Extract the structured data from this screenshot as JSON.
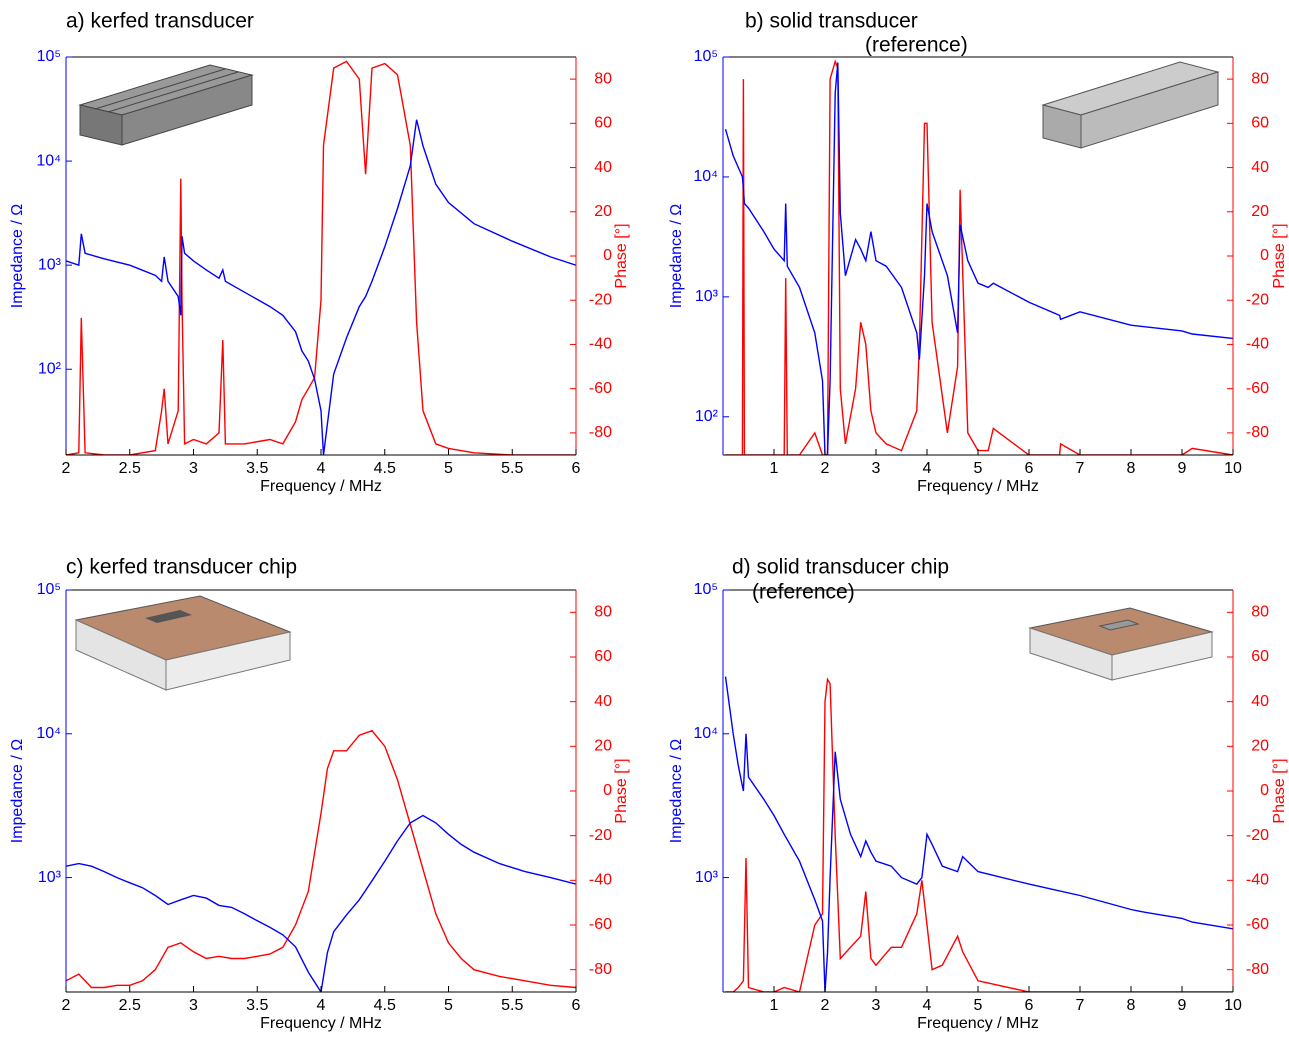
{
  "chart_data": [
    {
      "type": "line",
      "title": "a) kerfed transducer",
      "x_label": "Frequency / MHz",
      "y_label": "Impedance / Ω",
      "y2_label": "Phase [°]",
      "xlim": [
        2,
        6
      ],
      "xticks": [
        2,
        2.5,
        3,
        3.5,
        4,
        4.5,
        5,
        5.5,
        6
      ],
      "ylog": true,
      "ylim": [
        15,
        100000
      ],
      "yticks": [
        {
          "value": 100,
          "label": "10²"
        },
        {
          "value": 1000,
          "label": "10³"
        },
        {
          "value": 10000,
          "label": "10⁴"
        },
        {
          "value": 100000,
          "label": "10⁵"
        }
      ],
      "y2lim": [
        -90,
        90
      ],
      "y2ticks": [
        -80,
        -60,
        -40,
        -20,
        0,
        20,
        40,
        60,
        80
      ],
      "x": [
        2.0,
        2.1,
        2.12,
        2.15,
        2.3,
        2.5,
        2.7,
        2.75,
        2.77,
        2.8,
        2.88,
        2.9,
        2.91,
        2.93,
        3.0,
        3.1,
        3.2,
        3.23,
        3.25,
        3.4,
        3.6,
        3.7,
        3.8,
        3.85,
        3.9,
        3.95,
        4.0,
        4.02,
        4.1,
        4.2,
        4.3,
        4.35,
        4.4,
        4.5,
        4.6,
        4.7,
        4.75,
        4.8,
        4.9,
        5.0,
        5.2,
        5.5,
        5.8,
        6.0
      ],
      "series": [
        {
          "color": "#0000ff",
          "values": [
            1100,
            1000,
            2000,
            1300,
            1150,
            1000,
            800,
            700,
            1200,
            700,
            500,
            330,
            1900,
            1300,
            1100,
            900,
            750,
            900,
            700,
            550,
            400,
            330,
            230,
            150,
            120,
            80,
            40,
            15,
            90,
            200,
            400,
            500,
            700,
            1500,
            3500,
            9000,
            25000,
            14000,
            6000,
            4000,
            2500,
            1700,
            1200,
            1000
          ]
        },
        {
          "color": "#ff0000",
          "axis": "y2",
          "values": [
            -90,
            -89,
            -28,
            -89,
            -90,
            -90,
            -88,
            -70,
            -60,
            -85,
            -70,
            35,
            -20,
            -85,
            -83,
            -85,
            -80,
            -38,
            -85,
            -85,
            -83,
            -85,
            -75,
            -65,
            -60,
            -55,
            -20,
            50,
            85,
            88,
            80,
            37,
            85,
            87,
            82,
            50,
            -30,
            -70,
            -85,
            -87,
            -89,
            -90,
            -90,
            -90
          ]
        }
      ]
    },
    {
      "type": "line",
      "title": "b) solid transducer",
      "subtitle": "(reference)",
      "x_label": "Frequency / MHz",
      "y_label": "Impedance / Ω",
      "y2_label": "Phase [°]",
      "xlim": [
        0,
        10
      ],
      "xticks": [
        1,
        2,
        3,
        4,
        5,
        6,
        7,
        8,
        9,
        10
      ],
      "ylog": true,
      "ylim": [
        48,
        100000
      ],
      "yticks": [
        {
          "value": 100,
          "label": "10²"
        },
        {
          "value": 1000,
          "label": "10³"
        },
        {
          "value": 10000,
          "label": "10⁴"
        },
        {
          "value": 100000,
          "label": "10⁵"
        }
      ],
      "y2lim": [
        -90,
        90
      ],
      "y2ticks": [
        -80,
        -60,
        -40,
        -20,
        0,
        20,
        40,
        60,
        80
      ],
      "x": [
        0.05,
        0.2,
        0.38,
        0.4,
        0.42,
        0.5,
        0.8,
        1.0,
        1.2,
        1.23,
        1.26,
        1.5,
        1.8,
        1.95,
        2.0,
        2.05,
        2.1,
        2.2,
        2.25,
        2.3,
        2.4,
        2.6,
        2.7,
        2.8,
        2.9,
        3.0,
        3.2,
        3.5,
        3.8,
        3.85,
        3.95,
        4.0,
        4.1,
        4.4,
        4.6,
        4.65,
        4.8,
        5.0,
        5.2,
        5.3,
        6.0,
        6.6,
        6.62,
        7.0,
        8.0,
        9.0,
        9.2,
        10
      ],
      "series": [
        {
          "color": "#0000ff",
          "values": [
            25000,
            15000,
            10000,
            8000,
            6000,
            5500,
            3500,
            2500,
            2000,
            6000,
            1800,
            1200,
            500,
            200,
            48,
            48,
            200,
            50000,
            90000,
            5000,
            1500,
            3000,
            2500,
            2000,
            3500,
            2000,
            1800,
            1200,
            500,
            300,
            1500,
            6000,
            3500,
            1500,
            500,
            4000,
            2000,
            1300,
            1200,
            1300,
            900,
            700,
            650,
            750,
            580,
            520,
            490,
            450
          ]
        },
        {
          "color": "#ff0000",
          "axis": "y2",
          "values": [
            -90,
            -90,
            -90,
            80,
            -90,
            -90,
            -90,
            -90,
            -90,
            -10,
            -90,
            -90,
            -80,
            -90,
            -90,
            -90,
            80,
            88,
            85,
            -60,
            -85,
            -60,
            -30,
            -40,
            -70,
            -80,
            -85,
            -88,
            -70,
            -40,
            60,
            60,
            -30,
            -80,
            -50,
            30,
            -80,
            -88,
            -88,
            -78,
            -90,
            -90,
            -85,
            -90,
            -90,
            -90,
            -87,
            -90
          ]
        }
      ]
    },
    {
      "type": "line",
      "title": "c) kerfed transducer chip",
      "x_label": "Frequency / MHz",
      "y_label": "Impedance / Ω",
      "y2_label": "Phase [°]",
      "xlim": [
        2,
        6
      ],
      "xticks": [
        2,
        2.5,
        3,
        3.5,
        4,
        4.5,
        5,
        5.5,
        6
      ],
      "ylog": true,
      "ylim": [
        160,
        100000
      ],
      "yticks": [
        {
          "value": 1000,
          "label": "10³"
        },
        {
          "value": 10000,
          "label": "10⁴"
        },
        {
          "value": 100000,
          "label": "10⁵"
        }
      ],
      "y2lim": [
        -90,
        90
      ],
      "y2ticks": [
        -80,
        -60,
        -40,
        -20,
        0,
        20,
        40,
        60,
        80
      ],
      "x": [
        2.0,
        2.1,
        2.2,
        2.3,
        2.4,
        2.5,
        2.6,
        2.7,
        2.8,
        2.9,
        3.0,
        3.1,
        3.2,
        3.3,
        3.4,
        3.5,
        3.6,
        3.7,
        3.8,
        3.9,
        4.0,
        4.05,
        4.1,
        4.2,
        4.3,
        4.4,
        4.5,
        4.6,
        4.7,
        4.8,
        4.9,
        5.0,
        5.1,
        5.2,
        5.4,
        5.6,
        5.8,
        6.0
      ],
      "series": [
        {
          "color": "#0000ff",
          "values": [
            1200,
            1250,
            1200,
            1100,
            1000,
            920,
            850,
            750,
            650,
            700,
            750,
            720,
            640,
            620,
            560,
            500,
            450,
            400,
            330,
            220,
            160,
            300,
            420,
            550,
            700,
            950,
            1300,
            1800,
            2400,
            2700,
            2400,
            2000,
            1700,
            1500,
            1250,
            1100,
            1000,
            900
          ]
        },
        {
          "color": "#ff0000",
          "axis": "y2",
          "values": [
            -85,
            -82,
            -88,
            -88,
            -87,
            -87,
            -85,
            -80,
            -70,
            -68,
            -72,
            -75,
            -74,
            -75,
            -75,
            -74,
            -73,
            -70,
            -60,
            -45,
            -10,
            10,
            18,
            18,
            25,
            27,
            20,
            5,
            -15,
            -35,
            -55,
            -68,
            -75,
            -80,
            -83,
            -85,
            -87,
            -88
          ]
        }
      ]
    },
    {
      "type": "line",
      "title": "d) solid transducer chip",
      "subtitle": "(reference)",
      "x_label": "Frequency / MHz",
      "y_label": "Impedance / Ω",
      "y2_label": "Phase [°]",
      "xlim": [
        0,
        10
      ],
      "xticks": [
        1,
        2,
        3,
        4,
        5,
        6,
        7,
        8,
        9,
        10
      ],
      "ylog": true,
      "ylim": [
        160,
        100000
      ],
      "yticks": [
        {
          "value": 1000,
          "label": "10³"
        },
        {
          "value": 10000,
          "label": "10⁴"
        },
        {
          "value": 100000,
          "label": "10⁵"
        }
      ],
      "y2lim": [
        -90,
        90
      ],
      "y2ticks": [
        -80,
        -60,
        -40,
        -20,
        0,
        20,
        40,
        60,
        80
      ],
      "x": [
        0.05,
        0.2,
        0.3,
        0.4,
        0.45,
        0.5,
        0.8,
        1.0,
        1.2,
        1.5,
        1.8,
        1.95,
        2.0,
        2.05,
        2.1,
        2.2,
        2.3,
        2.5,
        2.7,
        2.8,
        2.9,
        3.0,
        3.3,
        3.5,
        3.8,
        3.9,
        4.0,
        4.1,
        4.3,
        4.6,
        4.7,
        5.0,
        6.0,
        7.0,
        8.0,
        8.2,
        9.0,
        9.2,
        10
      ],
      "series": [
        {
          "color": "#0000ff",
          "values": [
            25000,
            10000,
            6000,
            4000,
            10000,
            5000,
            3500,
            2700,
            2000,
            1300,
            700,
            500,
            160,
            300,
            1000,
            7500,
            3500,
            2000,
            1400,
            1800,
            1500,
            1300,
            1200,
            1000,
            900,
            1000,
            2000,
            1700,
            1200,
            1100,
            1400,
            1100,
            900,
            750,
            600,
            580,
            520,
            490,
            440
          ]
        },
        {
          "color": "#ff0000",
          "axis": "y2",
          "values": [
            -90,
            -90,
            -88,
            -85,
            -30,
            -88,
            -90,
            -90,
            -88,
            -90,
            -60,
            -55,
            40,
            50,
            48,
            -20,
            -75,
            -70,
            -65,
            -45,
            -75,
            -78,
            -70,
            -70,
            -55,
            -40,
            -60,
            -80,
            -78,
            -65,
            -72,
            -85,
            -90,
            -90,
            -90,
            -90,
            -90,
            -90,
            -90
          ]
        }
      ]
    }
  ]
}
